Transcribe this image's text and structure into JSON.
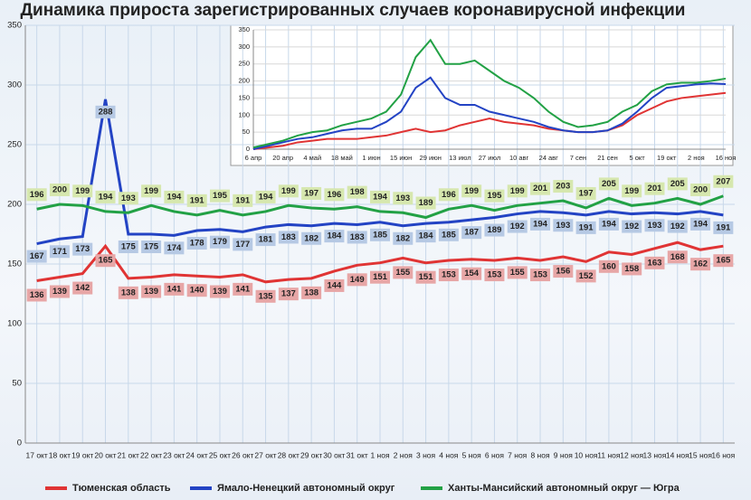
{
  "chart_data": [
    {
      "type": "line",
      "title": "Динамика прироста зарегистрированных случаев коронавирусной инфекции",
      "categories": [
        "17 окт",
        "18 окт",
        "19 окт",
        "20 окт",
        "21 окт",
        "22 окт",
        "23 окт",
        "24 окт",
        "25 окт",
        "26 окт",
        "27 окт",
        "28 окт",
        "29 окт",
        "30 окт",
        "31 окт",
        "1 ноя",
        "2 ноя",
        "3 ноя",
        "4 ноя",
        "5 ноя",
        "6 ноя",
        "7 ноя",
        "8 ноя",
        "9 ноя",
        "10 ноя",
        "11 ноя",
        "12 ноя",
        "13 ноя",
        "14 ноя",
        "15 ноя",
        "16 ноя"
      ],
      "series": [
        {
          "name": "Тюменская область",
          "color": "#e03434",
          "label_color": "#e7a6a6",
          "values": [
            136,
            139,
            142,
            165,
            138,
            139,
            141,
            140,
            139,
            141,
            135,
            137,
            138,
            144,
            149,
            151,
            155,
            151,
            153,
            154,
            153,
            155,
            153,
            156,
            152,
            160,
            158,
            163,
            168,
            162,
            165
          ]
        },
        {
          "name": "Ямало-Ненецкий автономный округ",
          "color": "#2343c4",
          "label_color": "#b6c9e4",
          "values": [
            167,
            171,
            173,
            288,
            175,
            175,
            174,
            178,
            179,
            177,
            181,
            183,
            182,
            184,
            183,
            185,
            182,
            184,
            185,
            187,
            189,
            192,
            194,
            193,
            191,
            194,
            192,
            193,
            192,
            194,
            191
          ]
        },
        {
          "name": "Ханты-Мансийский автономный округ — Югра",
          "color": "#22a145",
          "label_color": "#d6e7ae",
          "values": [
            196,
            200,
            199,
            194,
            193,
            199,
            194,
            191,
            195,
            191,
            194,
            199,
            197,
            196,
            198,
            194,
            193,
            189,
            196,
            199,
            195,
            199,
            201,
            203,
            197,
            205,
            199,
            201,
            205,
            200,
            207
          ]
        }
      ],
      "ylim": [
        0,
        350
      ],
      "yticks": [
        0,
        50,
        100,
        150,
        200,
        250,
        300,
        350
      ],
      "grid": true,
      "legend": "bottom"
    },
    {
      "type": "line",
      "categories": [
        "6 апр",
        null,
        "20 апр",
        null,
        "4 май",
        null,
        "18 май",
        null,
        "1 июн",
        null,
        "15 июн",
        null,
        "29 июн",
        null,
        "13 июл",
        null,
        "27 июл",
        null,
        "10 авг",
        null,
        "24 авг",
        null,
        "7 сен",
        null,
        "21 сен",
        null,
        "5 окт",
        null,
        "19 окт",
        null,
        "2 ноя",
        null,
        "16 ноя"
      ],
      "series": [
        {
          "color": "#e03434",
          "values": [
            0,
            5,
            10,
            20,
            25,
            30,
            30,
            30,
            35,
            40,
            50,
            60,
            50,
            55,
            70,
            80,
            90,
            80,
            75,
            70,
            60,
            55,
            50,
            50,
            55,
            70,
            100,
            120,
            140,
            150,
            155,
            160,
            165
          ]
        },
        {
          "color": "#2343c4",
          "values": [
            0,
            10,
            20,
            30,
            35,
            45,
            55,
            60,
            60,
            80,
            110,
            180,
            210,
            150,
            130,
            130,
            110,
            100,
            90,
            80,
            65,
            55,
            50,
            50,
            55,
            75,
            110,
            150,
            180,
            185,
            190,
            193,
            191
          ]
        },
        {
          "color": "#22a145",
          "values": [
            5,
            15,
            25,
            40,
            50,
            55,
            70,
            80,
            90,
            110,
            160,
            270,
            320,
            250,
            250,
            260,
            230,
            200,
            180,
            150,
            110,
            80,
            65,
            70,
            80,
            110,
            130,
            170,
            190,
            195,
            195,
            200,
            207
          ]
        }
      ],
      "ylim": [
        0,
        350
      ],
      "yticks": [
        0,
        50,
        100,
        150,
        200,
        250,
        300,
        350
      ],
      "grid": true
    }
  ]
}
